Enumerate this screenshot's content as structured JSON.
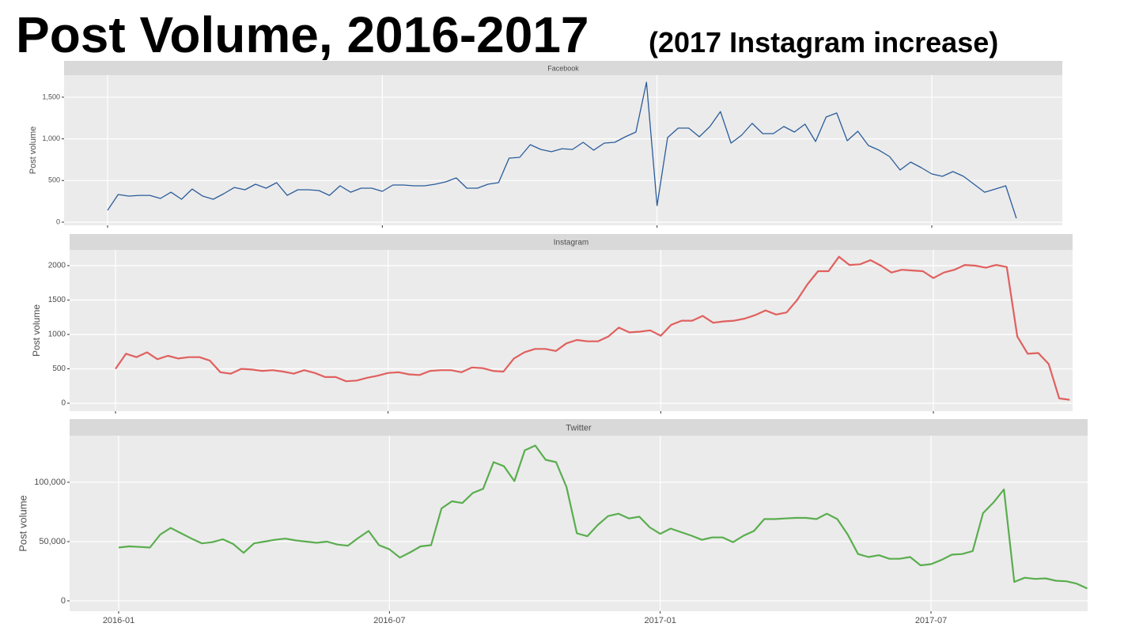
{
  "title": "Post Volume, 2016-2017",
  "subtitle": "(2017 Instagram increase)",
  "chart_data": [
    {
      "type": "line",
      "title": "Facebook",
      "y_label": "Post volume",
      "color": "#2b5c9a",
      "grid": true,
      "ylim": [
        -38,
        1765
      ],
      "yticks": [
        0,
        500,
        {
          "value": 1000,
          "label": "1,000"
        },
        {
          "value": 1500,
          "label": "1,500"
        }
      ],
      "values": [
        142,
        332,
        313,
        322,
        322,
        285,
        360,
        275,
        398,
        313,
        275,
        342,
        417,
        389,
        455,
        408,
        474,
        322,
        389,
        389,
        380,
        322,
        436,
        360,
        408,
        408,
        370,
        446,
        446,
        436,
        436,
        455,
        484,
        531,
        408,
        408,
        455,
        474,
        769,
        778,
        930,
        873,
        845,
        882,
        873,
        958,
        864,
        949,
        958,
        1025,
        1082,
        1680,
        199,
        1015,
        1129,
        1129,
        1025,
        1148,
        1328,
        949,
        1044,
        1186,
        1063,
        1063,
        1148,
        1082,
        1177,
        968,
        1262,
        1310,
        977,
        1091,
        920,
        864,
        788,
        626,
        721,
        655,
        579,
        550,
        607,
        550,
        455,
        360,
        398,
        436,
        47
      ]
    },
    {
      "type": "line",
      "title": "Instagram",
      "y_label": "Post volume",
      "color": "#e0605e",
      "grid": true,
      "ylim": [
        -115,
        2230
      ],
      "yticks": [
        0,
        500,
        1000,
        1500,
        2000
      ],
      "values": [
        500,
        720,
        670,
        740,
        640,
        690,
        650,
        670,
        670,
        620,
        450,
        430,
        500,
        490,
        470,
        480,
        460,
        430,
        480,
        440,
        380,
        380,
        320,
        330,
        370,
        400,
        440,
        450,
        420,
        410,
        470,
        480,
        480,
        450,
        520,
        510,
        470,
        460,
        650,
        740,
        790,
        790,
        760,
        870,
        920,
        900,
        900,
        970,
        1100,
        1030,
        1040,
        1060,
        980,
        1140,
        1200,
        1200,
        1270,
        1170,
        1190,
        1200,
        1230,
        1280,
        1350,
        1290,
        1320,
        1500,
        1730,
        1920,
        1920,
        2130,
        2010,
        2020,
        2080,
        2000,
        1900,
        1940,
        1930,
        1920,
        1820,
        1900,
        1940,
        2010,
        2000,
        1970,
        2010,
        1980,
        970,
        720,
        730,
        570,
        70,
        50
      ]
    },
    {
      "type": "line",
      "title": "Twitter",
      "y_label": "Post volume",
      "color": "#5aad4e",
      "grid": true,
      "ylim": [
        -8700,
        139300
      ],
      "yticks": [
        0,
        {
          "value": 50000,
          "label": "50,000"
        },
        {
          "value": 100000,
          "label": "100,000"
        }
      ],
      "categories": [
        "2016-01",
        null,
        null,
        null,
        null,
        null,
        null,
        null,
        null,
        null,
        null,
        null,
        null,
        null,
        null,
        null,
        null,
        null,
        null,
        null,
        null,
        null,
        null,
        null,
        null,
        null,
        "2016-07",
        null,
        null,
        null,
        null,
        null,
        null,
        null,
        null,
        null,
        null,
        null,
        null,
        null,
        null,
        null,
        null,
        null,
        null,
        null,
        null,
        null,
        null,
        null,
        null,
        null,
        "2017-01",
        null,
        null,
        null,
        null,
        null,
        null,
        null,
        null,
        null,
        null,
        null,
        null,
        null,
        null,
        null,
        null,
        null,
        null,
        null,
        null,
        null,
        null,
        null,
        null,
        null,
        "2017-07",
        null,
        null,
        null,
        null,
        null,
        null,
        null,
        null,
        null,
        null,
        null,
        null,
        null,
        null,
        null
      ],
      "values": [
        45000,
        46000,
        45500,
        45000,
        56000,
        61500,
        57000,
        52500,
        48500,
        49500,
        52000,
        48000,
        40500,
        48500,
        50000,
        51500,
        52500,
        51000,
        50000,
        49000,
        50000,
        47500,
        46500,
        53000,
        59000,
        47000,
        43500,
        36500,
        41000,
        46000,
        47000,
        78000,
        84000,
        82500,
        91000,
        94500,
        117000,
        113500,
        101000,
        127000,
        131000,
        119000,
        117000,
        96000,
        57000,
        54500,
        64000,
        71500,
        73500,
        69500,
        71000,
        62000,
        56500,
        61000,
        58000,
        55000,
        51500,
        53500,
        53500,
        49500,
        55000,
        59000,
        69000,
        69000,
        69500,
        70000,
        70000,
        69000,
        73500,
        69000,
        56000,
        39500,
        37000,
        38500,
        35500,
        35500,
        37000,
        30000,
        31000,
        34500,
        39000,
        39500,
        42000,
        74000,
        83000,
        94000,
        16000,
        19500,
        18500,
        19000,
        17000,
        16500,
        14500,
        10500
      ]
    }
  ]
}
